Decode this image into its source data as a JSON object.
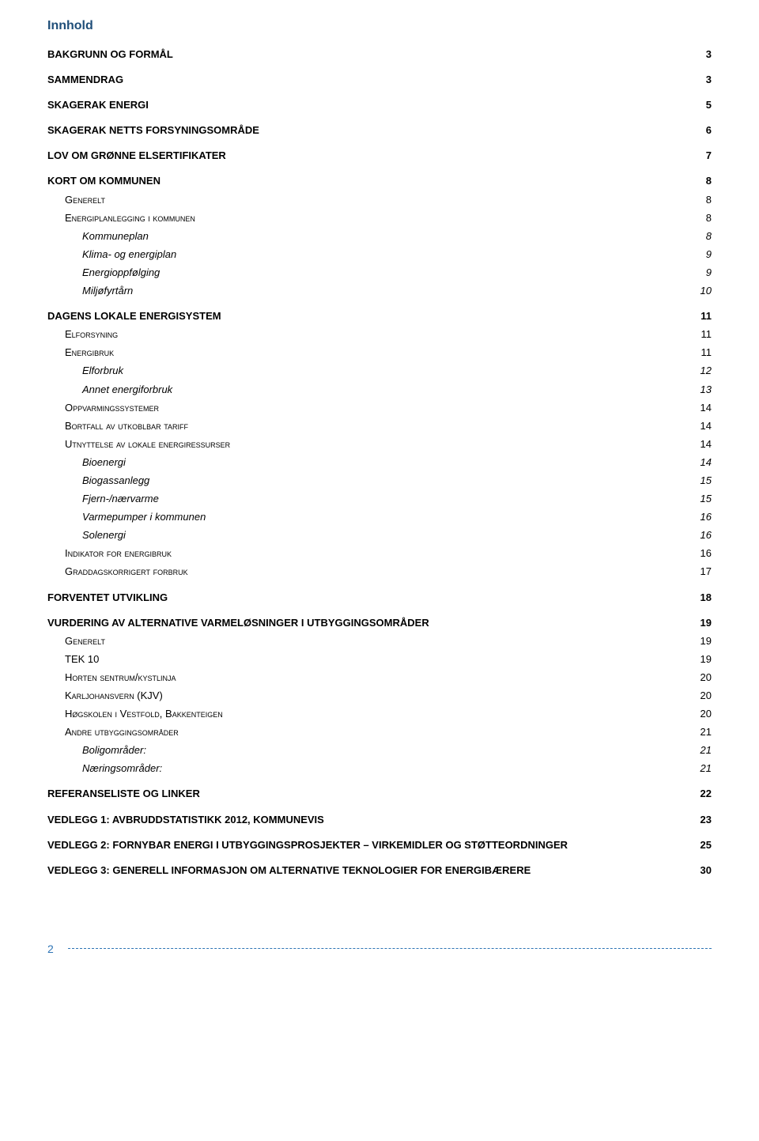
{
  "page": {
    "title": "Innhold",
    "colors": {
      "heading": "#1f4e79",
      "link": "#2e74b5",
      "text": "#000000",
      "background": "#ffffff"
    },
    "footer_page_number": "2"
  },
  "toc": [
    {
      "level": 0,
      "label": "BAKGRUNN OG FORMÅL",
      "style": "bold",
      "page": "3"
    },
    {
      "level": 0,
      "label": "SAMMENDRAG",
      "style": "bold",
      "page": "3"
    },
    {
      "level": 0,
      "label": "SKAGERAK ENERGI",
      "style": "bold",
      "page": "5"
    },
    {
      "level": 0,
      "label": "SKAGERAK NETTS FORSYNINGSOMRÅDE",
      "style": "bold",
      "page": "6"
    },
    {
      "level": 0,
      "label": "LOV OM GRØNNE ELSERTIFIKATER",
      "style": "bold",
      "page": "7"
    },
    {
      "level": 0,
      "label": "KORT OM KOMMUNEN",
      "style": "bold",
      "page": "8"
    },
    {
      "level": 1,
      "label": "Generelt",
      "style": "smallcaps",
      "page": "8"
    },
    {
      "level": 1,
      "label": "Energiplanlegging i kommunen",
      "style": "smallcaps",
      "page": "8"
    },
    {
      "level": 2,
      "label": "Kommuneplan",
      "style": "italic",
      "page": "8"
    },
    {
      "level": 2,
      "label": "Klima- og energiplan",
      "style": "italic",
      "page": "9"
    },
    {
      "level": 2,
      "label": "Energioppfølging",
      "style": "italic",
      "page": "9"
    },
    {
      "level": 2,
      "label": "Miljøfyrtårn",
      "style": "italic",
      "page": "10"
    },
    {
      "level": 0,
      "label": "DAGENS LOKALE ENERGISYSTEM",
      "style": "bold",
      "page": "11"
    },
    {
      "level": 1,
      "label": "Elforsyning",
      "style": "smallcaps",
      "page": "11"
    },
    {
      "level": 1,
      "label": "Energibruk",
      "style": "smallcaps",
      "page": "11"
    },
    {
      "level": 2,
      "label": "Elforbruk",
      "style": "italic",
      "page": "12"
    },
    {
      "level": 2,
      "label": "Annet energiforbruk",
      "style": "italic",
      "page": "13"
    },
    {
      "level": 1,
      "label": "Oppvarmingssystemer",
      "style": "smallcaps",
      "page": "14"
    },
    {
      "level": 1,
      "label": "Bortfall av utkoblbar tariff",
      "style": "smallcaps",
      "page": "14"
    },
    {
      "level": 1,
      "label": "Utnyttelse av lokale energiressurser",
      "style": "smallcaps",
      "page": "14"
    },
    {
      "level": 2,
      "label": "Bioenergi",
      "style": "italic",
      "page": "14"
    },
    {
      "level": 2,
      "label": "Biogassanlegg",
      "style": "italic",
      "page": "15"
    },
    {
      "level": 2,
      "label": "Fjern-/nærvarme",
      "style": "italic",
      "page": "15"
    },
    {
      "level": 2,
      "label": "Varmepumper i kommunen",
      "style": "italic",
      "page": "16"
    },
    {
      "level": 2,
      "label": "Solenergi",
      "style": "italic",
      "page": "16"
    },
    {
      "level": 1,
      "label": "Indikator for energibruk",
      "style": "smallcaps",
      "page": "16"
    },
    {
      "level": 1,
      "label": "Graddagskorrigert forbruk",
      "style": "smallcaps",
      "page": "17"
    },
    {
      "level": 0,
      "label": "FORVENTET UTVIKLING",
      "style": "bold",
      "page": "18"
    },
    {
      "level": 0,
      "label": "VURDERING AV ALTERNATIVE VARMELØSNINGER I UTBYGGINGSOMRÅDER",
      "style": "bold",
      "page": "19"
    },
    {
      "level": 1,
      "label": "Generelt",
      "style": "smallcaps",
      "page": "19"
    },
    {
      "level": 1,
      "label": "TEK 10",
      "style": "normal",
      "page": "19"
    },
    {
      "level": 1,
      "label": "Horten sentrum/kystlinja",
      "style": "smallcaps",
      "page": "20"
    },
    {
      "level": 1,
      "label": "Karljohansvern (KJV)",
      "style": "smallcaps",
      "page": "20"
    },
    {
      "level": 1,
      "label": "Høgskolen i Vestfold, Bakkenteigen",
      "style": "smallcaps",
      "page": "20"
    },
    {
      "level": 1,
      "label": "Andre utbyggingsområder",
      "style": "smallcaps",
      "page": "21"
    },
    {
      "level": 2,
      "label": "Boligområder:",
      "style": "italic",
      "page": "21"
    },
    {
      "level": 2,
      "label": "Næringsområder:",
      "style": "italic",
      "page": "21"
    },
    {
      "level": 0,
      "label": "REFERANSELISTE OG LINKER",
      "style": "bold",
      "page": "22"
    },
    {
      "level": 0,
      "label": "VEDLEGG 1: AVBRUDDSTATISTIKK 2012, KOMMUNEVIS",
      "style": "bold",
      "page": "23"
    },
    {
      "level": 0,
      "label": "VEDLEGG 2: FORNYBAR ENERGI I UTBYGGINGSPROSJEKTER – VIRKEMIDLER OG STØTTEORDNINGER",
      "style": "bold",
      "page": "25"
    },
    {
      "level": 0,
      "label": "VEDLEGG 3: GENERELL INFORMASJON OM ALTERNATIVE TEKNOLOGIER FOR ENERGIBÆRERE",
      "style": "bold",
      "page": "30"
    }
  ]
}
